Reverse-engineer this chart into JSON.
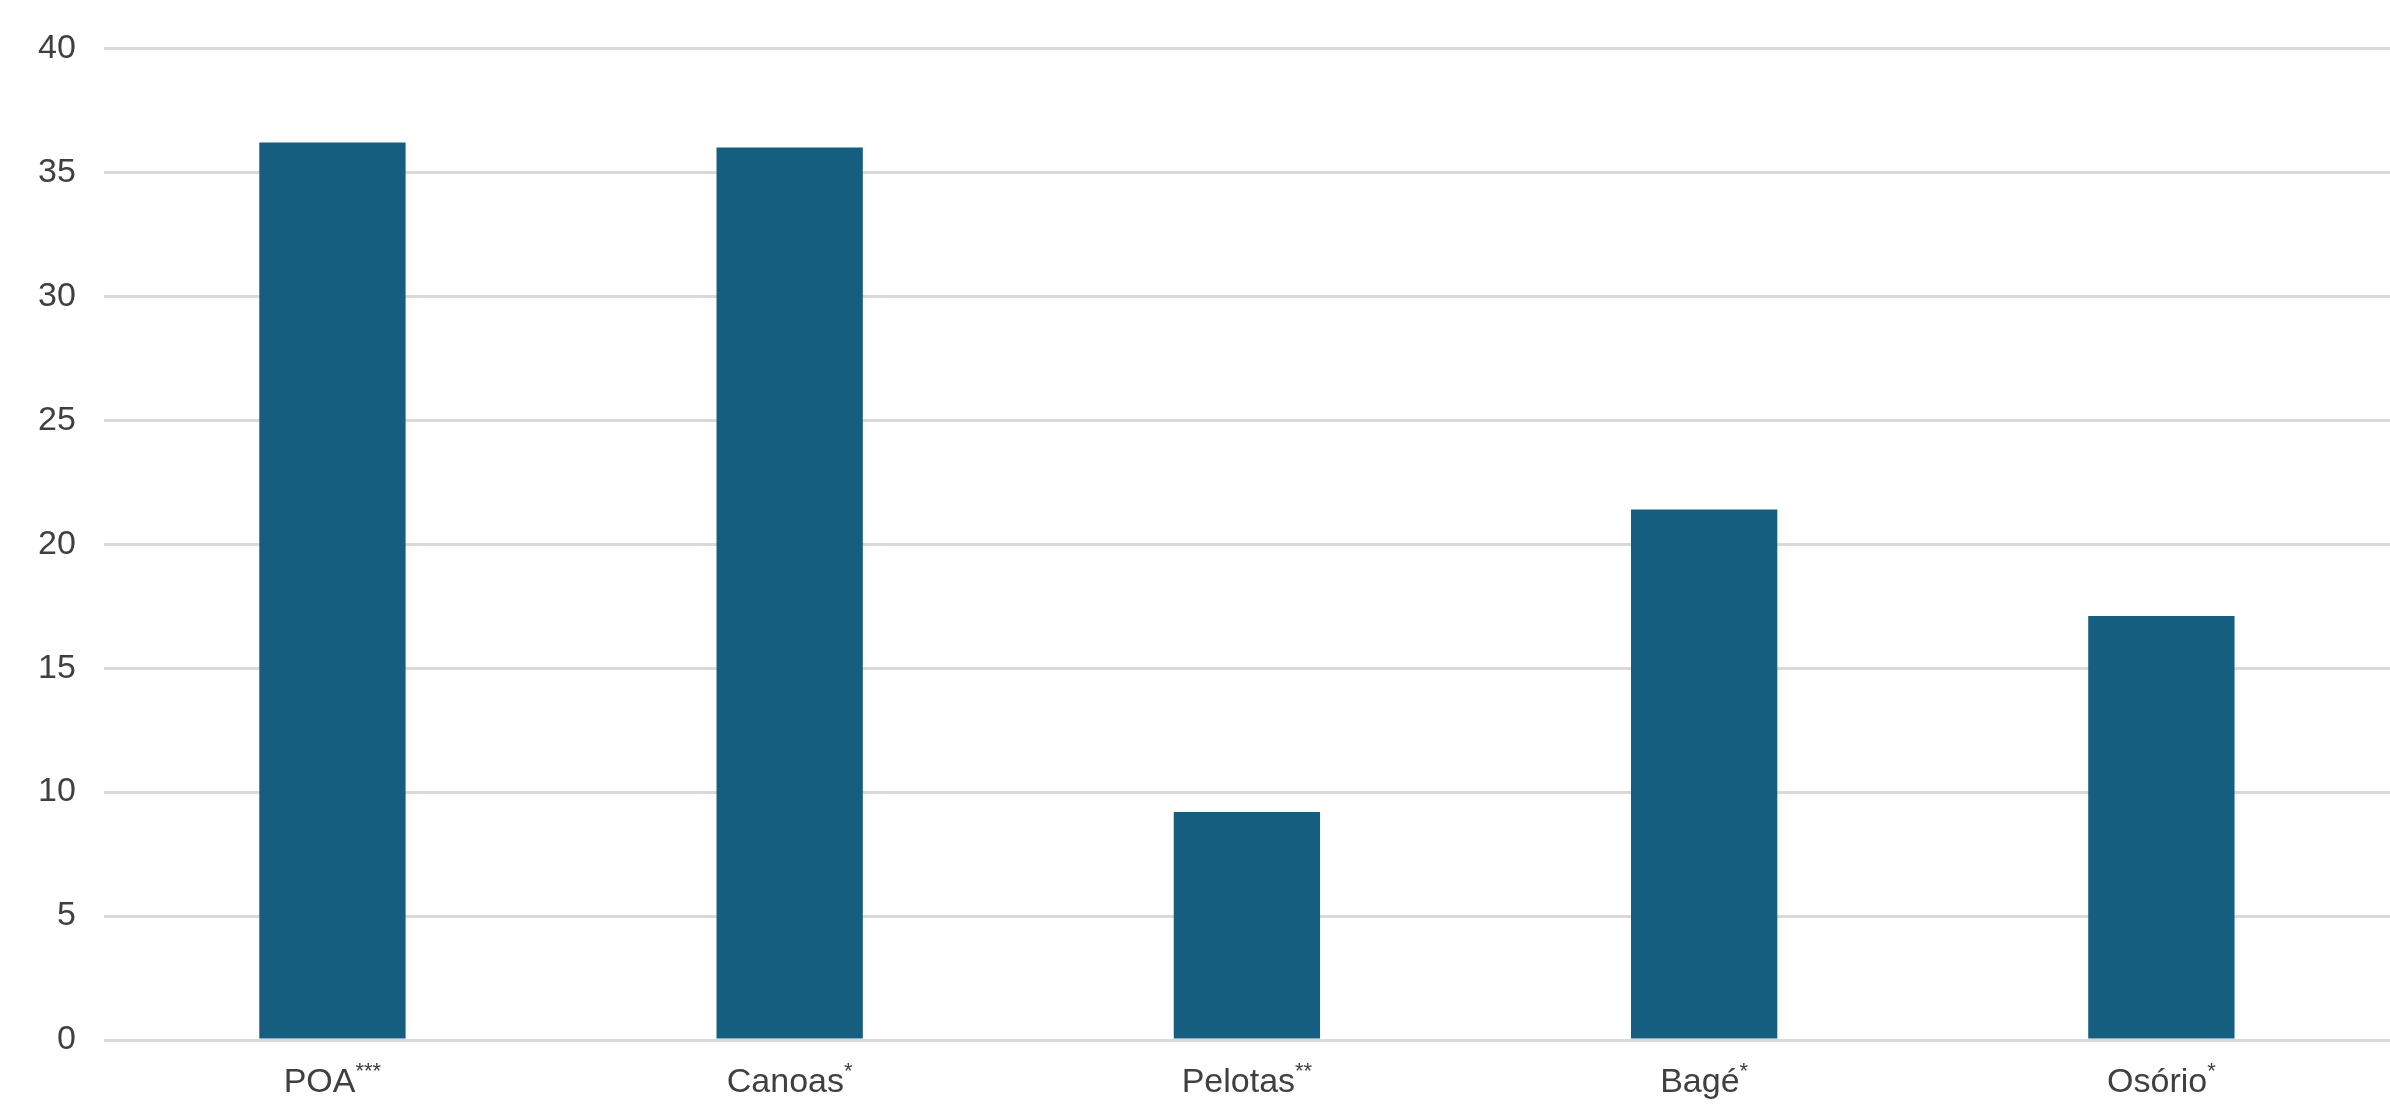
{
  "chart_data": {
    "type": "bar",
    "categories": [
      "POA$^{***}$",
      "Canoas$^{*}$",
      "Pelotas$^{**}$",
      "Bagé$^{*}$",
      "Osório$^{*}$"
    ],
    "values": [
      36.2,
      36.0,
      9.2,
      21.4,
      17.1
    ],
    "color": "#165e80",
    "ylim": [
      0,
      40
    ],
    "yticks": [
      0,
      5,
      10,
      15,
      20,
      25,
      30,
      35,
      40
    ],
    "grid": "y"
  }
}
